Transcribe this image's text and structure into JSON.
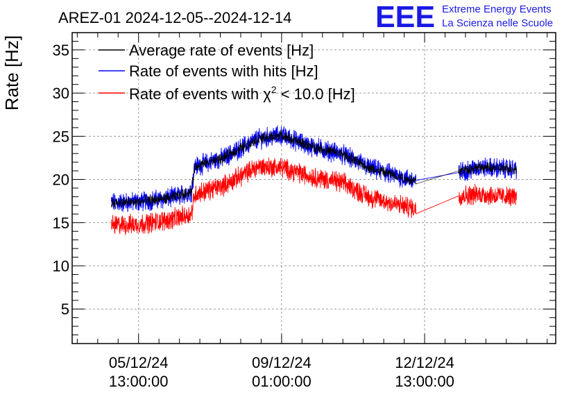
{
  "chart_data": {
    "type": "line",
    "title": "AREZ-01 2024-12-05--2024-12-14",
    "ylabel": "Rate [Hz]",
    "xlabel": "",
    "ylim": [
      1,
      37
    ],
    "yticks": [
      5,
      10,
      15,
      20,
      25,
      30,
      35
    ],
    "grid": true,
    "legend_position": "top-left",
    "x_tick_labels": [
      {
        "line1": "05/12/24",
        "line2": "13:00:00",
        "hours": 0
      },
      {
        "line1": "09/12/24",
        "line2": "01:00:00",
        "hours": 84
      },
      {
        "line1": "12/12/24",
        "line2": "13:00:00",
        "hours": 168
      }
    ],
    "xlim_hours": [
      -39,
      245
    ],
    "series": [
      {
        "name": "Average rate of events [Hz]",
        "color": "#000000",
        "x_hours": [
          -16,
          0,
          20,
          31,
          33,
          50,
          70,
          84,
          100,
          120,
          136,
          150,
          163,
          188,
          200,
          222
        ],
        "values": [
          17.3,
          17.4,
          17.9,
          18.6,
          21.5,
          22.5,
          24.7,
          25.1,
          23.9,
          22.9,
          21.3,
          20.5,
          19.8,
          21.0,
          21.4,
          21.2
        ]
      },
      {
        "name": "Rate of events with hits [Hz]",
        "color": "#0000ff",
        "x_hours": [
          -16,
          0,
          20,
          31,
          33,
          50,
          70,
          84,
          100,
          120,
          136,
          150,
          163,
          188,
          200,
          222
        ],
        "values": [
          17.3,
          17.4,
          17.9,
          18.6,
          21.5,
          22.5,
          24.7,
          25.1,
          23.9,
          22.9,
          21.3,
          20.5,
          19.8,
          20.8,
          21.4,
          21.2
        ]
      },
      {
        "name_prefix": "Rate of events with ",
        "name_symbol": "χ",
        "name_sup": "2",
        "name_suffix": " < 10.0 [Hz]",
        "color": "#ff0000",
        "x_hours": [
          -16,
          0,
          20,
          31,
          33,
          50,
          70,
          84,
          100,
          120,
          136,
          150,
          163,
          188,
          200,
          222
        ],
        "values": [
          14.7,
          14.8,
          15.4,
          16.0,
          18.3,
          19.3,
          21.5,
          21.4,
          20.4,
          19.6,
          17.9,
          17.2,
          16.6,
          18.1,
          18.3,
          17.9
        ]
      }
    ]
  },
  "logo": {
    "mark": "EEE",
    "line1": "Extreme Energy Events",
    "line2": "La Scienza nelle Scuole"
  }
}
